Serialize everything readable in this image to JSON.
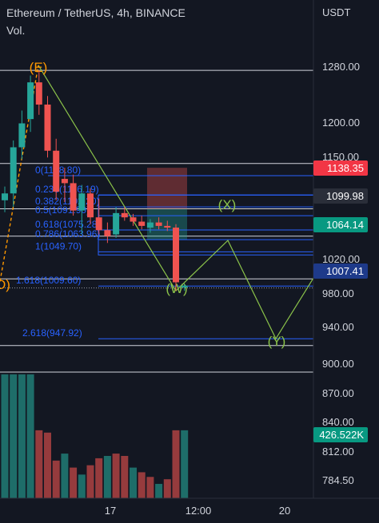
{
  "header": {
    "symbol_line": "Ethereum / TetherUS, 4h, BINANCE",
    "volume_label": "Vol."
  },
  "chart_data": [
    {
      "type": "candlestick",
      "symbol": "Ethereum / TetherUS",
      "interval": "4h",
      "exchange": "BINANCE",
      "currency_label": "USDT",
      "y_axis_ticks": [
        1280,
        1200,
        1150,
        1020,
        980,
        940,
        900
      ],
      "x_axis_ticks": [
        "17",
        "12:00",
        "20"
      ],
      "ylim": [
        870,
        1335
      ],
      "colors": {
        "up": "#26a69a",
        "down": "#ef5350",
        "fib": "#2962ff",
        "wave": "#8bc34a",
        "wave_e": "#ff9800"
      },
      "candles": [
        {
          "o": 1110,
          "h": 1126,
          "l": 1096,
          "c": 1118
        },
        {
          "o": 1118,
          "h": 1180,
          "l": 1102,
          "c": 1172
        },
        {
          "o": 1172,
          "h": 1215,
          "l": 1158,
          "c": 1200
        },
        {
          "o": 1205,
          "h": 1256,
          "l": 1190,
          "c": 1248
        },
        {
          "o": 1248,
          "h": 1262,
          "l": 1210,
          "c": 1222
        },
        {
          "o": 1222,
          "h": 1232,
          "l": 1160,
          "c": 1168
        },
        {
          "o": 1168,
          "h": 1182,
          "l": 1110,
          "c": 1120
        },
        {
          "o": 1135,
          "h": 1148,
          "l": 1108,
          "c": 1130
        },
        {
          "o": 1130,
          "h": 1140,
          "l": 1092,
          "c": 1098
        },
        {
          "o": 1098,
          "h": 1128,
          "l": 1070,
          "c": 1118
        },
        {
          "o": 1118,
          "h": 1124,
          "l": 1082,
          "c": 1090
        },
        {
          "o": 1090,
          "h": 1112,
          "l": 1070,
          "c": 1075
        },
        {
          "o": 1075,
          "h": 1084,
          "l": 1060,
          "c": 1068
        },
        {
          "o": 1070,
          "h": 1102,
          "l": 1066,
          "c": 1095
        },
        {
          "o": 1095,
          "h": 1102,
          "l": 1086,
          "c": 1090
        },
        {
          "o": 1090,
          "h": 1094,
          "l": 1080,
          "c": 1085
        },
        {
          "o": 1085,
          "h": 1092,
          "l": 1076,
          "c": 1080
        },
        {
          "o": 1078,
          "h": 1088,
          "l": 1072,
          "c": 1084
        },
        {
          "o": 1084,
          "h": 1090,
          "l": 1076,
          "c": 1080
        },
        {
          "o": 1080,
          "h": 1086,
          "l": 1074,
          "c": 1078
        },
        {
          "o": 1078,
          "h": 1082,
          "l": 1004,
          "c": 1014
        },
        {
          "o": 1008,
          "h": 1012,
          "l": 1004,
          "c": 1010
        }
      ],
      "volume": {
        "label": "Vol.",
        "last_value": "426.522K",
        "y_axis_ticks": [
          870,
          840,
          812,
          784.5
        ],
        "bars": [
          {
            "v": 880,
            "d": "up"
          },
          {
            "v": 880,
            "d": "up"
          },
          {
            "v": 880,
            "d": "up"
          },
          {
            "v": 880,
            "d": "up"
          },
          {
            "v": 832,
            "d": "down"
          },
          {
            "v": 830,
            "d": "down"
          },
          {
            "v": 806,
            "d": "down"
          },
          {
            "v": 812,
            "d": "up"
          },
          {
            "v": 800,
            "d": "down"
          },
          {
            "v": 794,
            "d": "up"
          },
          {
            "v": 802,
            "d": "down"
          },
          {
            "v": 808,
            "d": "down"
          },
          {
            "v": 810,
            "d": "up"
          },
          {
            "v": 812,
            "d": "down"
          },
          {
            "v": 810,
            "d": "down"
          },
          {
            "v": 800,
            "d": "up"
          },
          {
            "v": 796,
            "d": "down"
          },
          {
            "v": 792,
            "d": "down"
          },
          {
            "v": 786,
            "d": "up"
          },
          {
            "v": 790,
            "d": "down"
          },
          {
            "v": 832,
            "d": "down"
          },
          {
            "v": 832,
            "d": "up"
          }
        ]
      },
      "fibonacci": [
        {
          "label": "0(1138.80)",
          "price": 1138.8
        },
        {
          "label": "0.236(1116.19)",
          "price": 1116.19
        },
        {
          "label": "0.382(1102.20)",
          "price": 1102.2
        },
        {
          "label": "0.5(1091.90)",
          "price": 1091.9
        },
        {
          "label": "0.618(1075.28)",
          "price": 1075.28
        },
        {
          "label": "0.786(1063.96)",
          "price": 1063.96
        },
        {
          "label": "1(1049.70)",
          "price": 1049.7
        },
        {
          "label": "1.618(1009.60)",
          "price": 1009.6
        },
        {
          "label": "2.618(947.92)",
          "price": 947.92
        }
      ],
      "waves": [
        {
          "label": "(E)",
          "price": 1268
        },
        {
          "label": "(W)",
          "price": 1004
        },
        {
          "label": "(X)",
          "price": 1063
        },
        {
          "label": "(Y)",
          "price": 948
        },
        {
          "label": "D)",
          "price": 1015
        }
      ],
      "horizontal_levels": [
        1262,
        1153,
        1100,
        1068,
        1018,
        940
      ],
      "price_tags": [
        {
          "label": "1138.35",
          "style": "red"
        },
        {
          "label": "1099.98",
          "style": "gray"
        },
        {
          "label": "1064.14",
          "style": "green"
        },
        {
          "label": "1007.41",
          "style": "blue"
        },
        {
          "label": "426.522K",
          "style": "green"
        }
      ]
    }
  ]
}
